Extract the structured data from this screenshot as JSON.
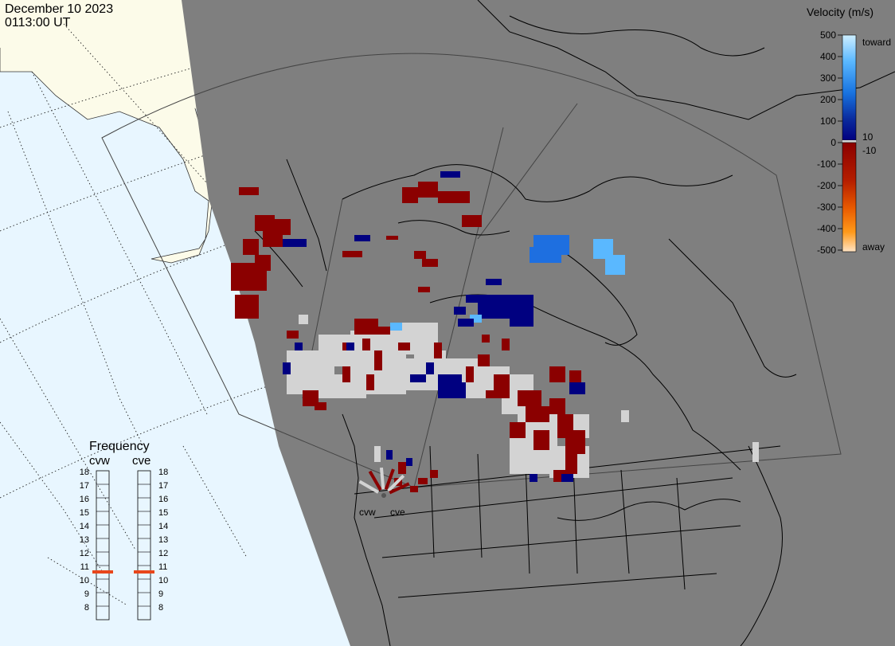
{
  "header": {
    "date": "December 10 2023",
    "time": "0113:00 UT"
  },
  "colorbar": {
    "title": "Velocity (m/s)",
    "ticks": [
      "500",
      "400",
      "300",
      "200",
      "100",
      "0",
      "-100",
      "-200",
      "-300",
      "-400",
      "-500"
    ],
    "label_toward": "toward",
    "label_away": "away",
    "label_pos10": "10",
    "label_neg10": "-10",
    "colors": {
      "toward_strong": "#cdeeff",
      "toward_mid": "#1e90ff",
      "toward_weak": "#000080",
      "away_weak": "#8b0000",
      "away_mid": "#ff8c00",
      "away_strong": "#ffe4c4",
      "ground_scatter": "#d3d3d3"
    }
  },
  "frequency": {
    "title": "Frequency",
    "radars": [
      "cvw",
      "cve"
    ],
    "scale_mhz": [
      "18",
      "17",
      "16",
      "15",
      "14",
      "13",
      "12",
      "11",
      "10",
      "9",
      "8"
    ],
    "cvw_mhz": 11,
    "cve_mhz": 11,
    "marker_color": "#e8461b"
  },
  "map": {
    "radar_sites": [
      "cvw",
      "cve"
    ],
    "night_color": "#7f7f7f",
    "day_ocean_color": "#e8f6ff",
    "day_land_color": "#fcfbe9"
  }
}
